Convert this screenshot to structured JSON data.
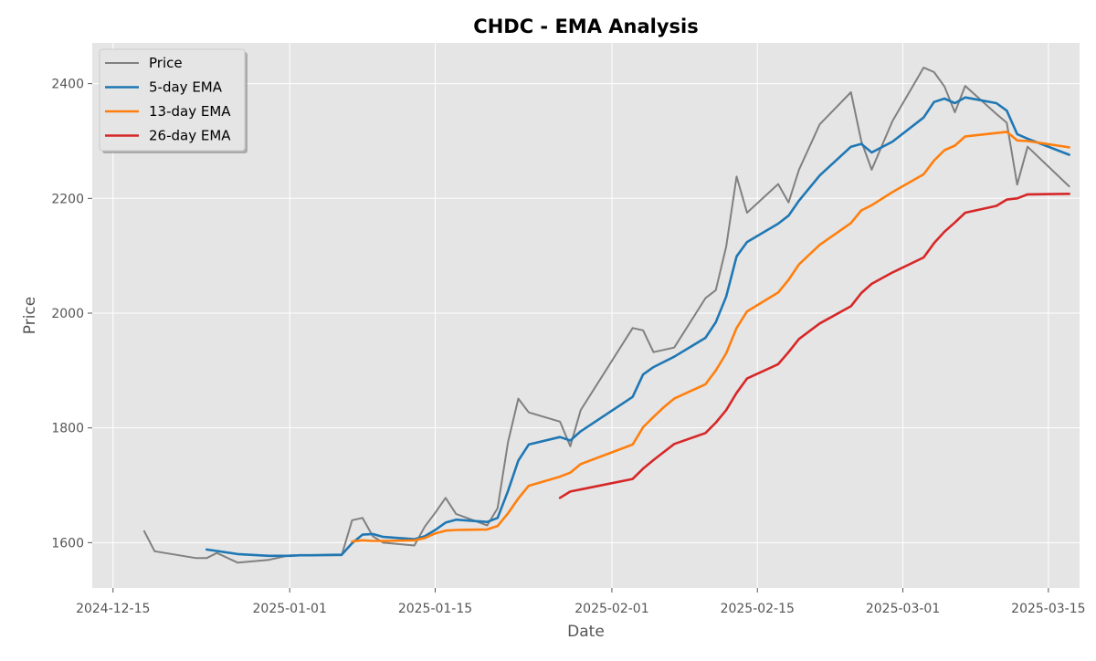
{
  "chart_data": {
    "type": "line",
    "title": "CHDC - EMA Analysis",
    "xlabel": "Date",
    "ylabel": "Price",
    "grid": true,
    "legend_position": "top-left",
    "xlim": [
      "2024-12-13",
      "2025-03-18"
    ],
    "ylim": [
      1521,
      2471
    ],
    "x_ticks": [
      "2024-12-15",
      "2025-01-01",
      "2025-01-15",
      "2025-02-01",
      "2025-02-15",
      "2025-03-01",
      "2025-03-15"
    ],
    "y_ticks": [
      1600,
      1800,
      2000,
      2200,
      2400
    ],
    "series": [
      {
        "name": "Price",
        "color": "#808080",
        "x": [
          "2024-12-18",
          "2024-12-19",
          "2024-12-23",
          "2024-12-24",
          "2024-12-25",
          "2024-12-27",
          "2024-12-30",
          "2025-01-01",
          "2025-01-02",
          "2025-01-03",
          "2025-01-06",
          "2025-01-07",
          "2025-01-08",
          "2025-01-09",
          "2025-01-10",
          "2025-01-13",
          "2025-01-14",
          "2025-01-15",
          "2025-01-16",
          "2025-01-17",
          "2025-01-20",
          "2025-01-21",
          "2025-01-22",
          "2025-01-23",
          "2025-01-24",
          "2025-01-27",
          "2025-01-28",
          "2025-01-29",
          "2025-02-03",
          "2025-02-04",
          "2025-02-05",
          "2025-02-07",
          "2025-02-10",
          "2025-02-11",
          "2025-02-12",
          "2025-02-13",
          "2025-02-14",
          "2025-02-17",
          "2025-02-18",
          "2025-02-19",
          "2025-02-21",
          "2025-02-24",
          "2025-02-25",
          "2025-02-26",
          "2025-02-28",
          "2025-03-03",
          "2025-03-04",
          "2025-03-05",
          "2025-03-06",
          "2025-03-07",
          "2025-03-10",
          "2025-03-11",
          "2025-03-12",
          "2025-03-13",
          "2025-03-17"
        ],
        "values": [
          1620,
          1585,
          1573,
          1573,
          1582,
          1565,
          1570,
          1578,
          1578,
          1578,
          1578,
          1639,
          1643,
          1611,
          1600,
          1595,
          1628,
          1652,
          1678,
          1650,
          1630,
          1660,
          1775,
          1851,
          1827,
          1811,
          1768,
          1831,
          1974,
          1970,
          1932,
          1940,
          2026,
          2040,
          2116,
          2238,
          2175,
          2225,
          2193,
          2250,
          2329,
          2385,
          2300,
          2250,
          2335,
          2428,
          2420,
          2395,
          2350,
          2396,
          2347,
          2332,
          2224,
          2290,
          2221
        ]
      },
      {
        "name": "5-day EMA",
        "color": "#1f77b4",
        "x": [
          "2024-12-24",
          "2024-12-27",
          "2024-12-30",
          "2025-01-01",
          "2025-01-02",
          "2025-01-03",
          "2025-01-06",
          "2025-01-07",
          "2025-01-08",
          "2025-01-09",
          "2025-01-10",
          "2025-01-13",
          "2025-01-14",
          "2025-01-15",
          "2025-01-16",
          "2025-01-17",
          "2025-01-20",
          "2025-01-21",
          "2025-01-22",
          "2025-01-23",
          "2025-01-24",
          "2025-01-27",
          "2025-01-28",
          "2025-01-29",
          "2025-02-03",
          "2025-02-04",
          "2025-02-05",
          "2025-02-07",
          "2025-02-10",
          "2025-02-11",
          "2025-02-12",
          "2025-02-13",
          "2025-02-14",
          "2025-02-17",
          "2025-02-18",
          "2025-02-19",
          "2025-02-21",
          "2025-02-24",
          "2025-02-25",
          "2025-02-26",
          "2025-02-28",
          "2025-03-03",
          "2025-03-04",
          "2025-03-05",
          "2025-03-06",
          "2025-03-07",
          "2025-03-10",
          "2025-03-11",
          "2025-03-12",
          "2025-03-13",
          "2025-03-17"
        ],
        "values": [
          1588,
          1580,
          1577,
          1577,
          1578,
          1578,
          1579,
          1599,
          1614,
          1615,
          1610,
          1606,
          1611,
          1622,
          1635,
          1640,
          1636,
          1643,
          1690,
          1743,
          1771,
          1784,
          1778,
          1794,
          1854,
          1893,
          1906,
          1924,
          1957,
          1984,
          2029,
          2099,
          2124,
          2156,
          2170,
          2196,
          2240,
          2290,
          2295,
          2280,
          2299,
          2341,
          2368,
          2374,
          2366,
          2376,
          2366,
          2353,
          2312,
          2304,
          2276
        ]
      },
      {
        "name": "13-day EMA",
        "color": "#ff7f0e",
        "x": [
          "2025-01-07",
          "2025-01-08",
          "2025-01-09",
          "2025-01-10",
          "2025-01-13",
          "2025-01-14",
          "2025-01-15",
          "2025-01-16",
          "2025-01-17",
          "2025-01-20",
          "2025-01-21",
          "2025-01-22",
          "2025-01-23",
          "2025-01-24",
          "2025-01-27",
          "2025-01-28",
          "2025-01-29",
          "2025-02-03",
          "2025-02-04",
          "2025-02-05",
          "2025-02-06",
          "2025-02-07",
          "2025-02-10",
          "2025-02-11",
          "2025-02-12",
          "2025-02-13",
          "2025-02-14",
          "2025-02-17",
          "2025-02-18",
          "2025-02-19",
          "2025-02-21",
          "2025-02-24",
          "2025-02-25",
          "2025-02-26",
          "2025-02-28",
          "2025-03-03",
          "2025-03-04",
          "2025-03-05",
          "2025-03-06",
          "2025-03-07",
          "2025-03-10",
          "2025-03-11",
          "2025-03-12",
          "2025-03-13",
          "2025-03-17"
        ],
        "values": [
          1602,
          1604,
          1603,
          1603,
          1604,
          1608,
          1616,
          1621,
          1622,
          1623,
          1629,
          1651,
          1677,
          1699,
          1715,
          1722,
          1737,
          1771,
          1801,
          1819,
          1836,
          1851,
          1876,
          1900,
          1930,
          1974,
          2003,
          2036,
          2058,
          2085,
          2119,
          2157,
          2179,
          2188,
          2211,
          2242,
          2266,
          2284,
          2292,
          2308,
          2314,
          2316,
          2301,
          2300,
          2289
        ]
      },
      {
        "name": "26-day EMA",
        "color": "#d62728",
        "x": [
          "2025-01-27",
          "2025-01-28",
          "2025-02-03",
          "2025-02-04",
          "2025-02-05",
          "2025-02-06",
          "2025-02-07",
          "2025-02-10",
          "2025-02-11",
          "2025-02-12",
          "2025-02-13",
          "2025-02-14",
          "2025-02-17",
          "2025-02-18",
          "2025-02-19",
          "2025-02-21",
          "2025-02-24",
          "2025-02-25",
          "2025-02-26",
          "2025-02-28",
          "2025-03-03",
          "2025-03-04",
          "2025-03-05",
          "2025-03-06",
          "2025-03-07",
          "2025-03-10",
          "2025-03-11",
          "2025-03-12",
          "2025-03-13",
          "2025-03-17"
        ],
        "values": [
          1678,
          1689,
          1711,
          1729,
          1744,
          1758,
          1772,
          1791,
          1809,
          1831,
          1861,
          1886,
          1911,
          1932,
          1955,
          1982,
          2012,
          2035,
          2051,
          2071,
          2097,
          2122,
          2142,
          2158,
          2175,
          2187,
          2198,
          2200,
          2207,
          2208
        ]
      }
    ]
  }
}
